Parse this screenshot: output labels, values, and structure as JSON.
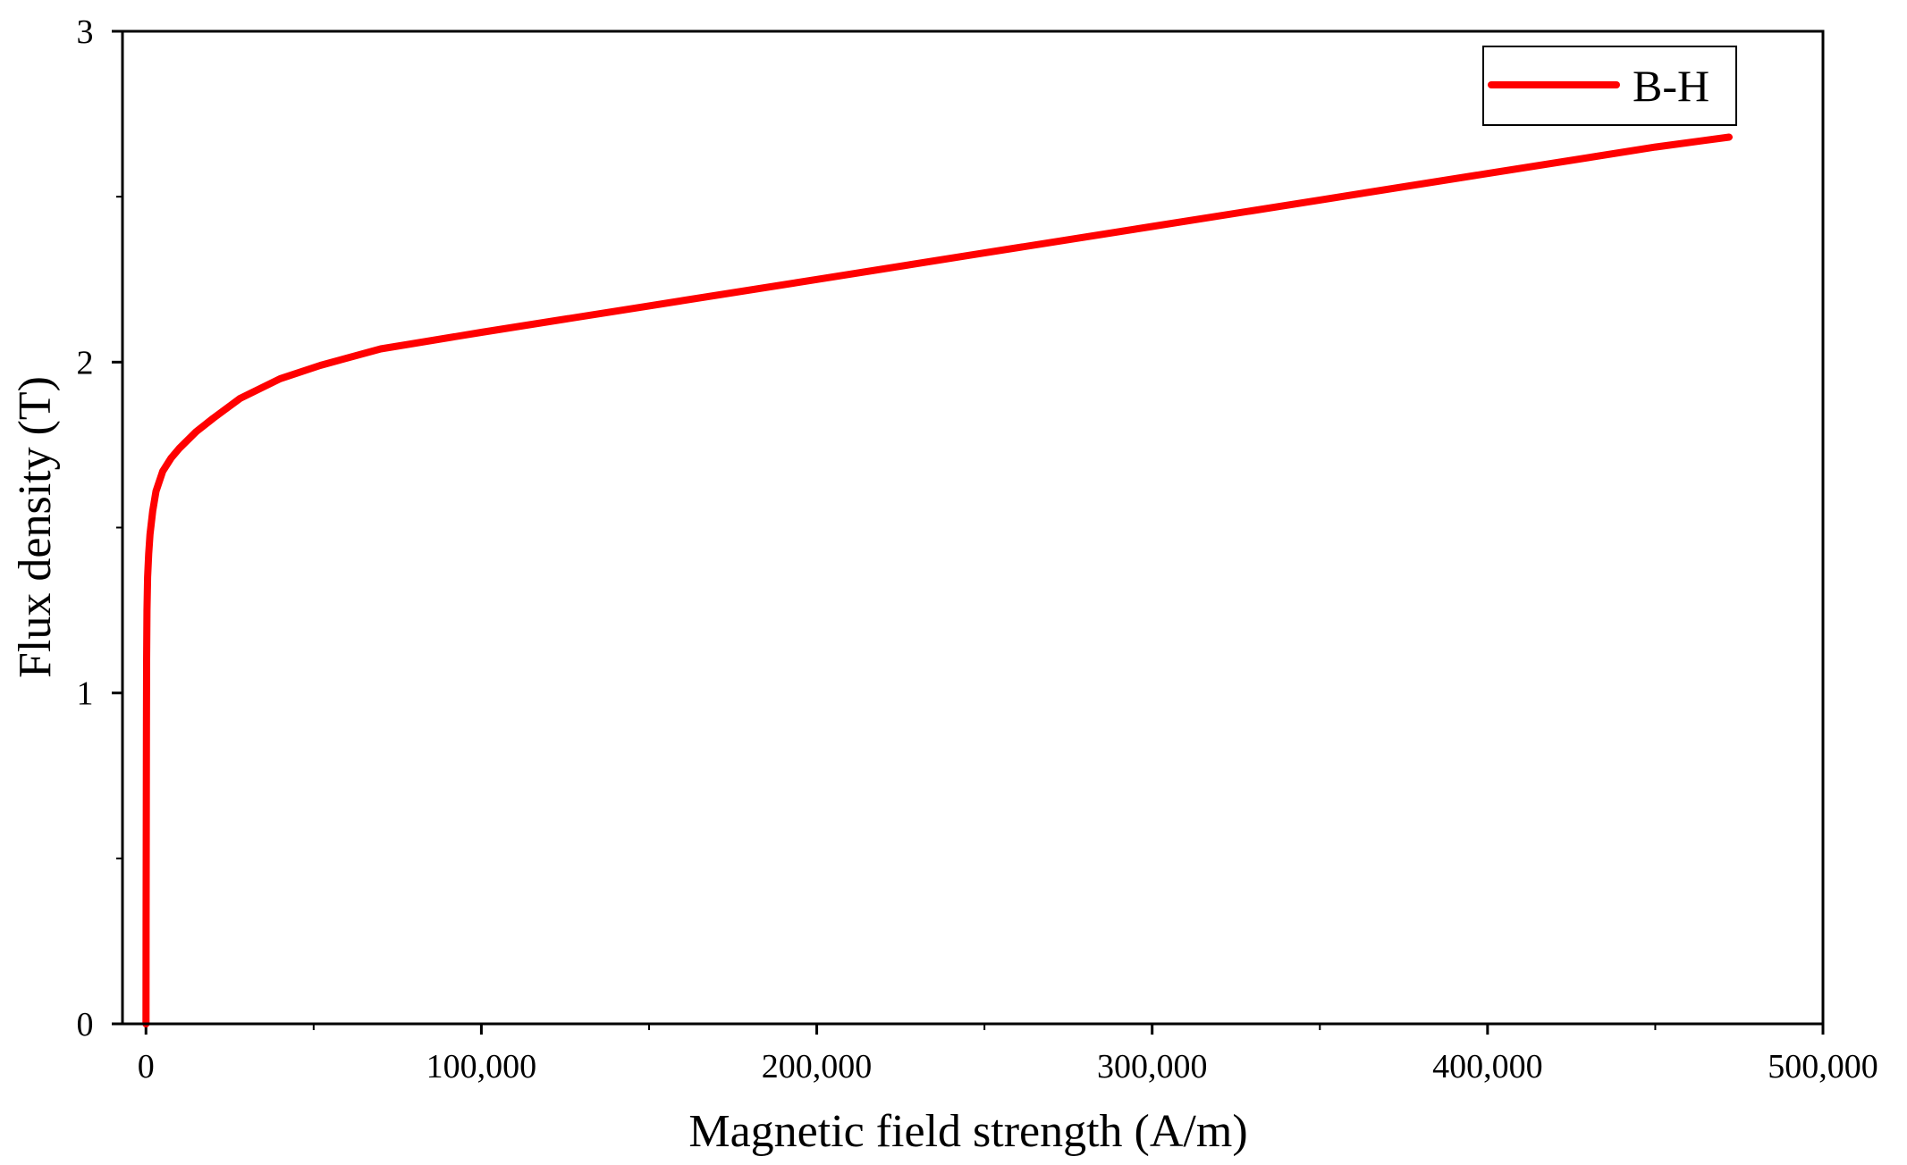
{
  "chart_data": {
    "type": "line",
    "title": "",
    "xlabel": "Magnetic field strength (A/m)",
    "ylabel": "Flux density (T)",
    "xlim": [
      -7000,
      500000
    ],
    "ylim": [
      0,
      3
    ],
    "x_ticks": [
      0,
      100000,
      200000,
      300000,
      400000,
      500000
    ],
    "x_tick_labels": [
      "0",
      "100,000",
      "200,000",
      "300,000",
      "400,000",
      "500,000"
    ],
    "x_minor_ticks": [
      50000,
      150000,
      250000,
      350000,
      450000
    ],
    "y_ticks": [
      0,
      1,
      2,
      3
    ],
    "y_tick_labels": [
      "0",
      "1",
      "2",
      "3"
    ],
    "y_minor_ticks": [
      0.5,
      1.5,
      2.5
    ],
    "grid": false,
    "legend_position": "top-right",
    "series": [
      {
        "name": "B-H",
        "color": "#ff0000",
        "x": [
          0,
          50,
          100,
          150,
          200,
          300,
          500,
          800,
          1200,
          2000,
          3000,
          5000,
          7500,
          10000,
          15000,
          20000,
          28000,
          40000,
          52000,
          70000,
          100000,
          150000,
          200000,
          250000,
          300000,
          350000,
          400000,
          450000,
          472000
        ],
        "y": [
          0,
          0.3,
          0.6,
          0.9,
          1.1,
          1.25,
          1.35,
          1.42,
          1.48,
          1.55,
          1.61,
          1.67,
          1.71,
          1.74,
          1.79,
          1.83,
          1.89,
          1.95,
          1.99,
          2.04,
          2.09,
          2.17,
          2.25,
          2.33,
          2.41,
          2.49,
          2.57,
          2.65,
          2.68
        ]
      }
    ]
  }
}
